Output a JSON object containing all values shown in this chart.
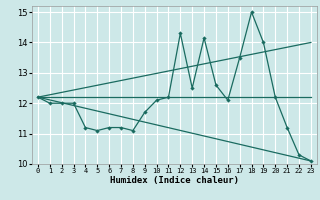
{
  "xlabel": "Humidex (Indice chaleur)",
  "xlim": [
    -0.5,
    23.5
  ],
  "ylim": [
    10,
    15.2
  ],
  "yticks": [
    10,
    11,
    12,
    13,
    14,
    15
  ],
  "xticks": [
    0,
    1,
    2,
    3,
    4,
    5,
    6,
    7,
    8,
    9,
    10,
    11,
    12,
    13,
    14,
    15,
    16,
    17,
    18,
    19,
    20,
    21,
    22,
    23
  ],
  "bg_color": "#cde8e8",
  "line_color": "#1a6b60",
  "line1_x": [
    0,
    1,
    2,
    3,
    4,
    5,
    6,
    7,
    8,
    9,
    10,
    11,
    12,
    13,
    14,
    15,
    16,
    17,
    18,
    19,
    20,
    21,
    22,
    23
  ],
  "line1_y": [
    12.2,
    12.0,
    12.0,
    12.0,
    11.2,
    11.1,
    11.2,
    11.2,
    11.1,
    11.7,
    12.1,
    12.2,
    14.3,
    12.5,
    14.15,
    12.6,
    12.1,
    13.5,
    15.0,
    14.0,
    12.2,
    11.2,
    10.3,
    10.1
  ],
  "line2_x": [
    0,
    23
  ],
  "line2_y": [
    12.2,
    12.2
  ],
  "line3_x": [
    0,
    23
  ],
  "line3_y": [
    12.2,
    14.0
  ],
  "line4_x": [
    0,
    23
  ],
  "line4_y": [
    12.2,
    10.1
  ]
}
